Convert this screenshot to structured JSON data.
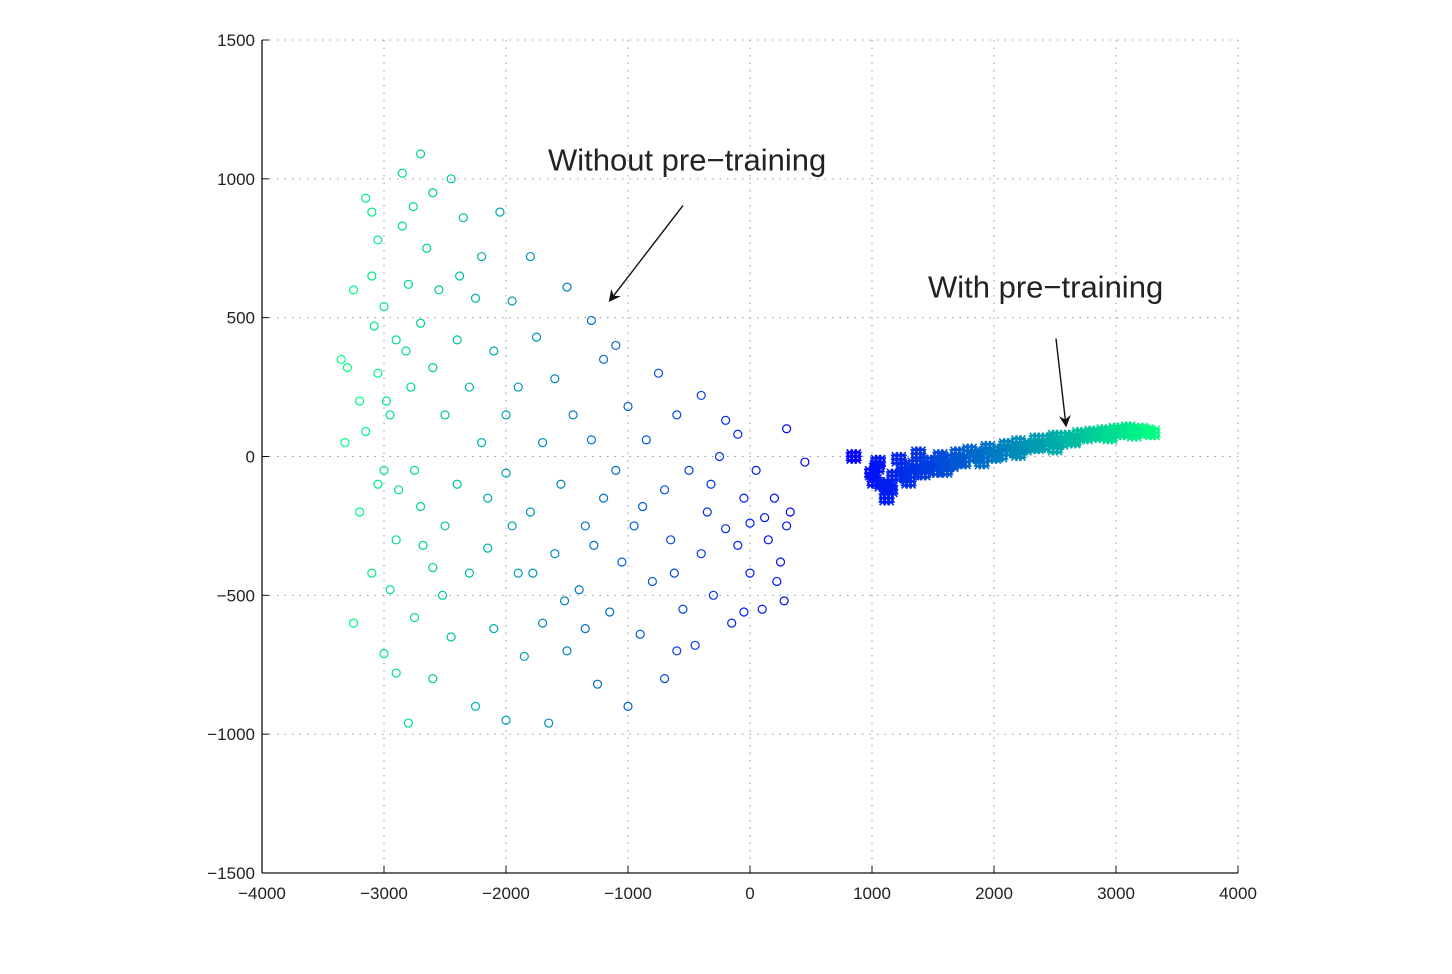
{
  "chart_data": {
    "type": "scatter",
    "title": "",
    "xlabel": "",
    "ylabel": "",
    "xlim": [
      -4000,
      4000
    ],
    "ylim": [
      -1500,
      1500
    ],
    "grid": true,
    "xticks": [
      "-4000",
      "-3000",
      "-2000",
      "-1000",
      "0",
      "1000",
      "2000",
      "3000",
      "4000"
    ],
    "xtick_values": [
      -4000,
      -3000,
      -2000,
      -1000,
      0,
      1000,
      2000,
      3000,
      4000
    ],
    "yticks": [
      "-1500",
      "-1000",
      "-500",
      "0",
      "500",
      "1000",
      "1500"
    ],
    "ytick_values": [
      -1500,
      -1000,
      -500,
      0,
      500,
      1000,
      1500
    ],
    "series": [
      {
        "name": "Without pre-training",
        "marker": "circle",
        "color_start": "#00ff80",
        "color_end": "#0000ff",
        "points": [
          [
            -3350,
            350
          ],
          [
            -3300,
            320
          ],
          [
            -3320,
            50
          ],
          [
            -3250,
            600
          ],
          [
            -3200,
            200
          ],
          [
            -3150,
            930
          ],
          [
            -3100,
            880
          ],
          [
            -3100,
            650
          ],
          [
            -3150,
            90
          ],
          [
            -3200,
            -200
          ],
          [
            -3250,
            -600
          ],
          [
            -3100,
            -420
          ],
          [
            -3050,
            780
          ],
          [
            -3000,
            540
          ],
          [
            -3050,
            300
          ],
          [
            -3000,
            -50
          ],
          [
            -3000,
            -710
          ],
          [
            -2950,
            150
          ],
          [
            -2900,
            420
          ],
          [
            -2900,
            -300
          ],
          [
            -2900,
            -780
          ],
          [
            -2850,
            1020
          ],
          [
            -2850,
            830
          ],
          [
            -2800,
            -960
          ],
          [
            -2800,
            620
          ],
          [
            -2780,
            250
          ],
          [
            -2750,
            -50
          ],
          [
            -2750,
            -580
          ],
          [
            -2700,
            1090
          ],
          [
            -2700,
            480
          ],
          [
            -2700,
            -180
          ],
          [
            -2650,
            750
          ],
          [
            -2600,
            950
          ],
          [
            -2600,
            320
          ],
          [
            -2600,
            -400
          ],
          [
            -2600,
            -800
          ],
          [
            -2550,
            600
          ],
          [
            -2500,
            150
          ],
          [
            -2500,
            -250
          ],
          [
            -2450,
            1000
          ],
          [
            -2450,
            -650
          ],
          [
            -2400,
            420
          ],
          [
            -2400,
            -100
          ],
          [
            -2350,
            860
          ],
          [
            -2300,
            250
          ],
          [
            -2300,
            -420
          ],
          [
            -2250,
            -900
          ],
          [
            -2250,
            570
          ],
          [
            -2200,
            720
          ],
          [
            -2200,
            50
          ],
          [
            -2150,
            -330
          ],
          [
            -2100,
            380
          ],
          [
            -2100,
            -620
          ],
          [
            -2050,
            880
          ],
          [
            -2000,
            150
          ],
          [
            -2000,
            -60
          ],
          [
            -2000,
            -950
          ],
          [
            -1950,
            560
          ],
          [
            -1900,
            -420
          ],
          [
            -1900,
            250
          ],
          [
            -1850,
            -720
          ],
          [
            -1800,
            720
          ],
          [
            -1800,
            -200
          ],
          [
            -1750,
            430
          ],
          [
            -1700,
            50
          ],
          [
            -1700,
            -600
          ],
          [
            -1650,
            -960
          ],
          [
            -1600,
            280
          ],
          [
            -1600,
            -350
          ],
          [
            -1550,
            -100
          ],
          [
            -1500,
            610
          ],
          [
            -1500,
            -700
          ],
          [
            -1450,
            150
          ],
          [
            -1400,
            -480
          ],
          [
            -1350,
            -250
          ],
          [
            -1300,
            490
          ],
          [
            -1300,
            60
          ],
          [
            -1250,
            -820
          ],
          [
            -1200,
            -150
          ],
          [
            -1200,
            350
          ],
          [
            -1150,
            -560
          ],
          [
            -1100,
            400
          ],
          [
            -1100,
            -50
          ],
          [
            -1050,
            -380
          ],
          [
            -1000,
            -900
          ],
          [
            -1000,
            180
          ],
          [
            -950,
            -250
          ],
          [
            -900,
            -640
          ],
          [
            -850,
            60
          ],
          [
            -800,
            -450
          ],
          [
            -750,
            300
          ],
          [
            -700,
            -120
          ],
          [
            -700,
            -800
          ],
          [
            -650,
            -300
          ],
          [
            -600,
            150
          ],
          [
            -550,
            -550
          ],
          [
            -500,
            -50
          ],
          [
            -450,
            -680
          ],
          [
            -400,
            220
          ],
          [
            -400,
            -350
          ],
          [
            -350,
            -200
          ],
          [
            -300,
            -500
          ],
          [
            -250,
            0
          ],
          [
            -200,
            -260
          ],
          [
            -200,
            130
          ],
          [
            -150,
            -600
          ],
          [
            -100,
            -320
          ],
          [
            -100,
            80
          ],
          [
            -50,
            -150
          ],
          [
            0,
            -420
          ],
          [
            0,
            -240
          ],
          [
            50,
            -50
          ],
          [
            100,
            -550
          ],
          [
            150,
            -300
          ],
          [
            200,
            -150
          ],
          [
            250,
            -380
          ],
          [
            300,
            -250
          ],
          [
            300,
            100
          ],
          [
            330,
            -200
          ],
          [
            450,
            -20
          ],
          [
            280,
            -520
          ],
          [
            -50,
            -560
          ],
          [
            -600,
            -700
          ],
          [
            -1350,
            -620
          ],
          [
            -2950,
            -480
          ],
          [
            -3050,
            -100
          ],
          [
            -2980,
            200
          ],
          [
            -2820,
            380
          ],
          [
            -2680,
            -320
          ],
          [
            -2880,
            -120
          ],
          [
            -3080,
            470
          ],
          [
            -2760,
            900
          ],
          [
            -2520,
            -500
          ],
          [
            -2380,
            650
          ],
          [
            -2150,
            -150
          ],
          [
            -1950,
            -250
          ],
          [
            -1780,
            -420
          ],
          [
            -1520,
            -520
          ],
          [
            -1280,
            -320
          ],
          [
            -880,
            -180
          ],
          [
            -620,
            -420
          ],
          [
            -320,
            -100
          ],
          [
            120,
            -220
          ],
          [
            220,
            -450
          ]
        ]
      },
      {
        "name": "With pre-training",
        "marker": "star",
        "color_start": "#0000ff",
        "color_end": "#00ff80",
        "points": [
          [
            850,
            0
          ],
          [
            1000,
            -60
          ],
          [
            1020,
            -90
          ],
          [
            1050,
            -20
          ],
          [
            1080,
            -100
          ],
          [
            1150,
            -120
          ],
          [
            1180,
            -70
          ],
          [
            1220,
            -10
          ],
          [
            1260,
            -40
          ],
          [
            1300,
            -90
          ],
          [
            1350,
            -30
          ],
          [
            1380,
            10
          ],
          [
            1420,
            -60
          ],
          [
            1470,
            -20
          ],
          [
            1520,
            -50
          ],
          [
            1560,
            0
          ],
          [
            1600,
            -10
          ],
          [
            1650,
            -30
          ],
          [
            1700,
            10
          ],
          [
            1750,
            -20
          ],
          [
            1800,
            20
          ],
          [
            1850,
            0
          ],
          [
            1900,
            10
          ],
          [
            1950,
            30
          ],
          [
            2000,
            0
          ],
          [
            2050,
            20
          ],
          [
            2100,
            40
          ],
          [
            2150,
            20
          ],
          [
            2200,
            50
          ],
          [
            2250,
            30
          ],
          [
            2300,
            40
          ],
          [
            2350,
            60
          ],
          [
            2400,
            40
          ],
          [
            2450,
            60
          ],
          [
            2500,
            70
          ],
          [
            2550,
            50
          ],
          [
            2600,
            70
          ],
          [
            2650,
            60
          ],
          [
            2700,
            80
          ],
          [
            2750,
            70
          ],
          [
            2800,
            85
          ],
          [
            2850,
            75
          ],
          [
            2900,
            90
          ],
          [
            2950,
            80
          ],
          [
            3000,
            95
          ],
          [
            3050,
            85
          ],
          [
            3100,
            100
          ],
          [
            3150,
            90
          ],
          [
            3200,
            95
          ],
          [
            3250,
            90
          ],
          [
            3300,
            85
          ],
          [
            1120,
            -150
          ],
          [
            1600,
            -50
          ],
          [
            1900,
            -20
          ],
          [
            2200,
            10
          ],
          [
            2500,
            30
          ],
          [
            1040,
            -40
          ],
          [
            1130,
            -110
          ],
          [
            1250,
            -70
          ],
          [
            1330,
            -60
          ],
          [
            1450,
            -40
          ],
          [
            1700,
            -15
          ],
          [
            2050,
            5
          ],
          [
            2350,
            35
          ],
          [
            2650,
            55
          ],
          [
            2950,
            70
          ],
          [
            3150,
            80
          ]
        ]
      }
    ],
    "annotations": [
      {
        "text": "Without pre−training",
        "x": -1656,
        "y": 1030,
        "arrow_from": [
          -549,
          904
        ],
        "arrow_to": [
          -1148,
          562
        ]
      },
      {
        "text": "With pre−training",
        "x": 1459,
        "y": 573,
        "arrow_from": [
          2508,
          425
        ],
        "arrow_to": [
          2590,
          112
        ]
      }
    ]
  }
}
